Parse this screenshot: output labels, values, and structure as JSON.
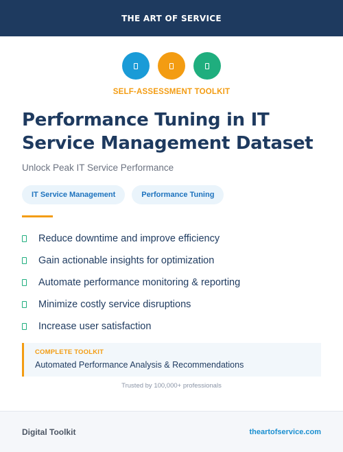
{
  "header": {
    "title": "THE ART OF SERVICE"
  },
  "icons": [
    {
      "name": "document-icon",
      "color": "#1a9bd7"
    },
    {
      "name": "document-icon",
      "color": "#f39c12"
    },
    {
      "name": "document-icon",
      "color": "#1fae7e"
    }
  ],
  "kicker": "SELF-ASSESSMENT TOOLKIT",
  "title": "Performance Tuning in IT Service Management Dataset",
  "subtitle": "Unlock Peak IT Service Performance",
  "tags": [
    "IT Service Management",
    "Performance Tuning"
  ],
  "features": [
    "Reduce downtime and improve efficiency",
    "Gain actionable insights for optimization",
    "Automate performance monitoring & reporting",
    "Minimize costly service disruptions",
    "Increase user satisfaction"
  ],
  "callout": {
    "label": "COMPLETE TOOLKIT",
    "description": "Automated Performance Analysis & Recommendations"
  },
  "trusted": "Trusted by 100,000+ professionals",
  "footer": {
    "left": "Digital Toolkit",
    "right": "theartofservice.com"
  },
  "colors": {
    "navy": "#1e3a5f",
    "orange": "#f39c12",
    "blue": "#1a9bd7",
    "green": "#1fae7e"
  }
}
